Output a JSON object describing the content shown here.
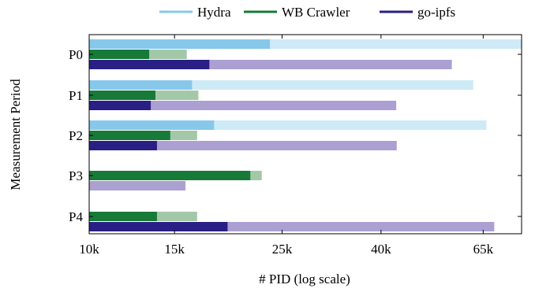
{
  "chart_data": {
    "type": "bar",
    "orientation": "horizontal",
    "xlabel": "# PID (log scale)",
    "ylabel": "Measurement Period",
    "x_scale": "log",
    "xlim": [
      10000,
      78000
    ],
    "x_ticks": [
      10000,
      15000,
      25000,
      40000,
      65000
    ],
    "x_tick_labels": [
      "10k",
      "15k",
      "25k",
      "40k",
      "65k"
    ],
    "categories": [
      "P0",
      "P1",
      "P2",
      "P3",
      "P4"
    ],
    "legend_position": "top-center",
    "series": [
      {
        "name": "Hydra",
        "color": "#87c8ea",
        "light_color": "#cdeaf6",
        "values": [
          [
            23600,
            78000
          ],
          [
            16300,
            62000
          ],
          [
            18100,
            66000
          ],
          null,
          null
        ]
      },
      {
        "name": "WB Crawler",
        "color": "#177a38",
        "light_color": "#a3c8a8",
        "values": [
          [
            13300,
            15900
          ],
          [
            13700,
            16800
          ],
          [
            14700,
            16700
          ],
          [
            21500,
            22700
          ],
          [
            13800,
            16700
          ]
        ]
      },
      {
        "name": "go-ipfs",
        "color": "#2a1f85",
        "light_color": "#ac9fd1",
        "values": [
          [
            17700,
            56000
          ],
          [
            13400,
            43000
          ],
          [
            13800,
            43100
          ],
          [
            0,
            15800
          ],
          [
            19300,
            68500
          ]
        ]
      }
    ]
  }
}
